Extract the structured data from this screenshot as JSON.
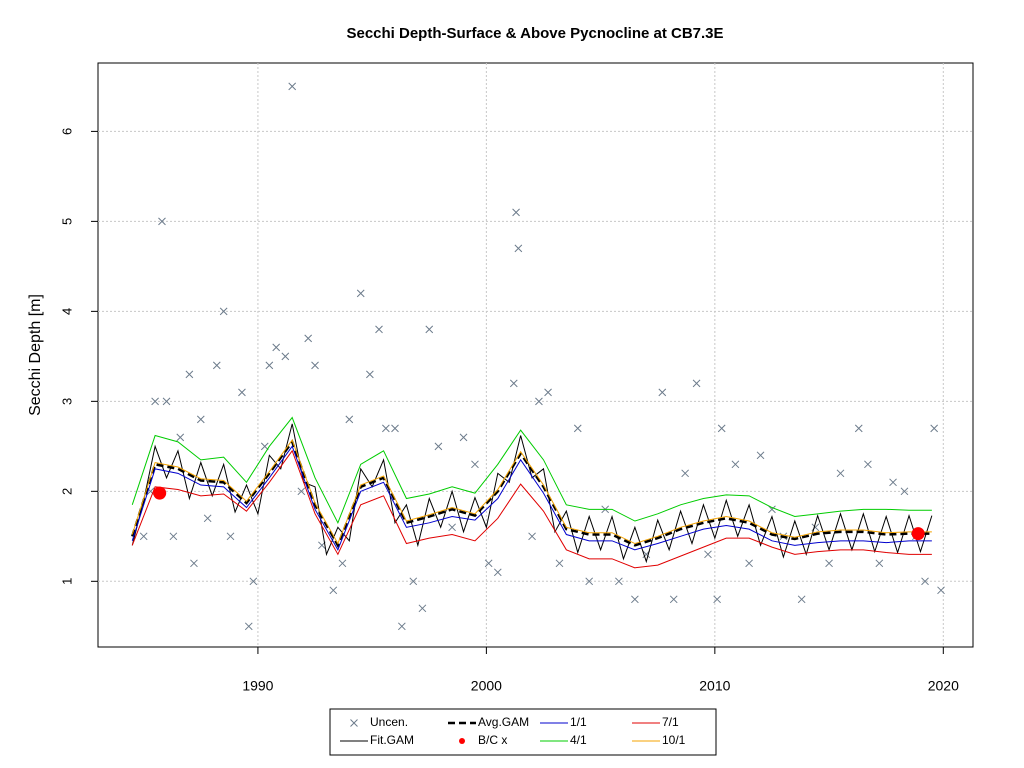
{
  "chart_data": {
    "type": "line",
    "title": "Secchi Depth-Surface & Above Pycnocline at CB7.3E",
    "ylabel": "Secchi Depth [m]",
    "xlim": [
      1983.0,
      2021.3
    ],
    "ylim": [
      0.27,
      6.76
    ],
    "xticks": [
      1990,
      2000,
      2010,
      2020
    ],
    "yticks": [
      1,
      2,
      3,
      4,
      5,
      6
    ],
    "grid": true,
    "legend": "bottom",
    "series": [
      {
        "name": "Uncen.",
        "type": "scatter",
        "color": "#6c7b8b",
        "x": [
          1985.0,
          1985.3,
          1985.5,
          1985.8,
          1986.0,
          1986.3,
          1986.6,
          1987.0,
          1987.2,
          1987.5,
          1987.8,
          1988.2,
          1988.5,
          1988.8,
          1989.3,
          1989.6,
          1989.8,
          1990.3,
          1990.5,
          1990.8,
          1991.2,
          1991.5,
          1991.9,
          1992.2,
          1992.5,
          1992.8,
          1993.3,
          1993.7,
          1994.0,
          1994.5,
          1994.9,
          1995.3,
          1995.6,
          1996.0,
          1996.3,
          1996.8,
          1997.2,
          1997.5,
          1997.9,
          1998.5,
          1999.0,
          1999.5,
          2000.1,
          2000.5,
          2001.2,
          2001.3,
          2001.4,
          2002.0,
          2002.3,
          2002.7,
          2003.2,
          2004.0,
          2004.5,
          2005.2,
          2005.8,
          2006.5,
          2007.0,
          2007.7,
          2008.2,
          2008.7,
          2009.2,
          2009.7,
          2010.1,
          2010.3,
          2010.9,
          2011.5,
          2012.0,
          2012.5,
          2013.0,
          2013.8,
          2014.4,
          2015.0,
          2015.5,
          2016.3,
          2016.7,
          2017.2,
          2017.8,
          2018.3,
          2018.8,
          2019.2,
          2019.6,
          2019.9
        ],
        "values": [
          1.5,
          2.0,
          3.0,
          5.0,
          3.0,
          1.5,
          2.6,
          3.3,
          1.2,
          2.8,
          1.7,
          3.4,
          4.0,
          1.5,
          3.1,
          0.5,
          1.0,
          2.5,
          3.4,
          3.6,
          3.5,
          6.5,
          2.0,
          3.7,
          3.4,
          1.4,
          0.9,
          1.2,
          2.8,
          4.2,
          3.3,
          3.8,
          2.7,
          2.7,
          0.5,
          1.0,
          0.7,
          3.8,
          2.5,
          1.6,
          2.6,
          2.3,
          1.2,
          1.1,
          3.2,
          5.1,
          4.7,
          1.5,
          3.0,
          3.1,
          1.2,
          2.7,
          1.0,
          1.8,
          1.0,
          0.8,
          1.3,
          3.1,
          0.8,
          2.2,
          3.2,
          1.3,
          0.8,
          2.7,
          2.3,
          1.2,
          2.4,
          1.8,
          1.5,
          0.8,
          1.6,
          1.2,
          2.2,
          2.7,
          2.3,
          1.2,
          2.1,
          2.0,
          1.5,
          1.0,
          2.7,
          0.9
        ]
      },
      {
        "name": "Fit.GAM",
        "type": "line",
        "color": "#000000",
        "x": [
          1984.5,
          1985,
          1985.5,
          1986,
          1986.5,
          1987,
          1987.5,
          1988,
          1988.5,
          1989,
          1989.5,
          1990,
          1990.5,
          1991,
          1991.5,
          1992,
          1992.5,
          1993,
          1993.5,
          1994,
          1994.5,
          1995,
          1995.5,
          1996,
          1996.5,
          1997,
          1997.5,
          1998,
          1998.5,
          1999,
          1999.5,
          2000,
          2000.5,
          2001,
          2001.5,
          2002,
          2002.5,
          2003,
          2003.5,
          2004,
          2004.5,
          2005,
          2005.5,
          2006,
          2006.5,
          2007,
          2007.5,
          2008,
          2008.5,
          2009,
          2009.5,
          2010,
          2010.5,
          2011,
          2011.5,
          2012,
          2012.5,
          2013,
          2013.5,
          2014,
          2014.5,
          2015,
          2015.5,
          2016,
          2016.5,
          2017,
          2017.5,
          2018,
          2018.5,
          2019,
          2019.5
        ],
        "values": [
          1.4,
          1.9,
          2.5,
          2.15,
          2.45,
          1.92,
          2.32,
          1.95,
          2.3,
          1.77,
          2.07,
          1.75,
          2.4,
          2.25,
          2.75,
          2.1,
          2.05,
          1.3,
          1.6,
          1.45,
          2.25,
          2.05,
          2.35,
          1.65,
          1.85,
          1.4,
          1.92,
          1.6,
          2.0,
          1.55,
          1.93,
          1.6,
          2.2,
          2.1,
          2.62,
          2.15,
          2.25,
          1.55,
          1.78,
          1.32,
          1.72,
          1.35,
          1.72,
          1.25,
          1.6,
          1.22,
          1.68,
          1.35,
          1.78,
          1.42,
          1.85,
          1.48,
          1.9,
          1.5,
          1.85,
          1.4,
          1.72,
          1.27,
          1.67,
          1.3,
          1.73,
          1.35,
          1.75,
          1.35,
          1.75,
          1.33,
          1.72,
          1.32,
          1.73,
          1.33,
          1.73
        ]
      },
      {
        "name": "Avg.GAM",
        "type": "line",
        "dash": true,
        "color": "#000000",
        "x": [
          1984.5,
          1985.5,
          1986.5,
          1987.5,
          1988.5,
          1989.5,
          1990.5,
          1991.5,
          1992.5,
          1993.5,
          1994.5,
          1995.5,
          1996.5,
          1997.5,
          1998.5,
          1999.5,
          2000.5,
          2001.5,
          2002.5,
          2003.5,
          2004.5,
          2005.5,
          2006.5,
          2007.5,
          2008.5,
          2009.5,
          2010.5,
          2011.5,
          2012.5,
          2013.5,
          2014.5,
          2015.5,
          2016.5,
          2017.5,
          2018.5,
          2019.5
        ],
        "values": [
          1.5,
          2.3,
          2.25,
          2.12,
          2.1,
          1.87,
          2.2,
          2.55,
          1.85,
          1.4,
          2.05,
          2.15,
          1.65,
          1.72,
          1.8,
          1.73,
          2.0,
          2.42,
          2.05,
          1.58,
          1.52,
          1.52,
          1.4,
          1.48,
          1.58,
          1.65,
          1.7,
          1.65,
          1.52,
          1.47,
          1.53,
          1.55,
          1.55,
          1.52,
          1.53,
          1.53
        ]
      },
      {
        "name": "B/C x",
        "type": "point",
        "color": "#ff0000",
        "x": [
          1985.7,
          2018.9
        ],
        "values": [
          1.98,
          1.53
        ]
      },
      {
        "name": "1/1",
        "type": "line",
        "color": "#0000cd",
        "x": [
          1984.5,
          1985.5,
          1986.5,
          1987.5,
          1988.5,
          1989.5,
          1990.5,
          1991.5,
          1992.5,
          1993.5,
          1994.5,
          1995.5,
          1996.5,
          1997.5,
          1998.5,
          1999.5,
          2000.5,
          2001.5,
          2002.5,
          2003.5,
          2004.5,
          2005.5,
          2006.5,
          2007.5,
          2008.5,
          2009.5,
          2010.5,
          2011.5,
          2012.5,
          2013.5,
          2014.5,
          2015.5,
          2016.5,
          2017.5,
          2018.5,
          2019.5
        ],
        "values": [
          1.45,
          2.25,
          2.2,
          2.07,
          2.05,
          1.82,
          2.15,
          2.5,
          1.8,
          1.35,
          2.0,
          2.1,
          1.6,
          1.65,
          1.72,
          1.68,
          1.92,
          2.35,
          1.98,
          1.52,
          1.45,
          1.45,
          1.35,
          1.42,
          1.5,
          1.58,
          1.62,
          1.58,
          1.45,
          1.4,
          1.43,
          1.45,
          1.45,
          1.43,
          1.45,
          1.45
        ]
      },
      {
        "name": "4/1",
        "type": "line",
        "color": "#00cc00",
        "x": [
          1984.5,
          1985.5,
          1986.5,
          1987.5,
          1988.5,
          1989.5,
          1990.5,
          1991.5,
          1992.5,
          1993.5,
          1994.5,
          1995.5,
          1996.5,
          1997.5,
          1998.5,
          1999.5,
          2000.5,
          2001.5,
          2002.5,
          2003.5,
          2004.5,
          2005.5,
          2006.5,
          2007.5,
          2008.5,
          2009.5,
          2010.5,
          2011.5,
          2012.5,
          2013.5,
          2014.5,
          2015.5,
          2016.5,
          2017.5,
          2018.5,
          2019.5
        ],
        "values": [
          1.85,
          2.62,
          2.55,
          2.35,
          2.38,
          2.1,
          2.5,
          2.82,
          2.15,
          1.65,
          2.3,
          2.45,
          1.92,
          1.97,
          2.05,
          1.98,
          2.3,
          2.68,
          2.35,
          1.85,
          1.8,
          1.8,
          1.67,
          1.75,
          1.85,
          1.92,
          1.96,
          1.95,
          1.82,
          1.72,
          1.75,
          1.78,
          1.8,
          1.8,
          1.79,
          1.79
        ]
      },
      {
        "name": "7/1",
        "type": "line",
        "color": "#e00000",
        "x": [
          1984.5,
          1985.5,
          1986.5,
          1987.5,
          1988.5,
          1989.5,
          1990.5,
          1991.5,
          1992.5,
          1993.5,
          1994.5,
          1995.5,
          1996.5,
          1997.5,
          1998.5,
          1999.5,
          2000.5,
          2001.5,
          2002.5,
          2003.5,
          2004.5,
          2005.5,
          2006.5,
          2007.5,
          2008.5,
          2009.5,
          2010.5,
          2011.5,
          2012.5,
          2013.5,
          2014.5,
          2015.5,
          2016.5,
          2017.5,
          2018.5,
          2019.5
        ],
        "values": [
          1.4,
          2.05,
          2.02,
          1.95,
          1.97,
          1.78,
          2.1,
          2.45,
          1.75,
          1.3,
          1.85,
          1.95,
          1.42,
          1.48,
          1.52,
          1.45,
          1.7,
          2.08,
          1.78,
          1.35,
          1.25,
          1.25,
          1.15,
          1.18,
          1.28,
          1.38,
          1.48,
          1.48,
          1.38,
          1.3,
          1.33,
          1.35,
          1.35,
          1.32,
          1.3,
          1.3
        ]
      },
      {
        "name": "10/1",
        "type": "line",
        "color": "#f4a300",
        "x": [
          1984.5,
          1985.5,
          1986.5,
          1987.5,
          1988.5,
          1989.5,
          1990.5,
          1991.5,
          1992.5,
          1993.5,
          1994.5,
          1995.5,
          1996.5,
          1997.5,
          1998.5,
          1999.5,
          2000.5,
          2001.5,
          2002.5,
          2003.5,
          2004.5,
          2005.5,
          2006.5,
          2007.5,
          2008.5,
          2009.5,
          2010.5,
          2011.5,
          2012.5,
          2013.5,
          2014.5,
          2015.5,
          2016.5,
          2017.5,
          2018.5,
          2019.5
        ],
        "values": [
          1.52,
          2.32,
          2.27,
          2.14,
          2.12,
          1.89,
          2.22,
          2.57,
          1.87,
          1.42,
          2.07,
          2.17,
          1.67,
          1.74,
          1.82,
          1.75,
          2.02,
          2.44,
          2.07,
          1.6,
          1.54,
          1.54,
          1.42,
          1.5,
          1.6,
          1.67,
          1.72,
          1.67,
          1.54,
          1.49,
          1.55,
          1.57,
          1.57,
          1.54,
          1.55,
          1.55
        ]
      }
    ]
  }
}
